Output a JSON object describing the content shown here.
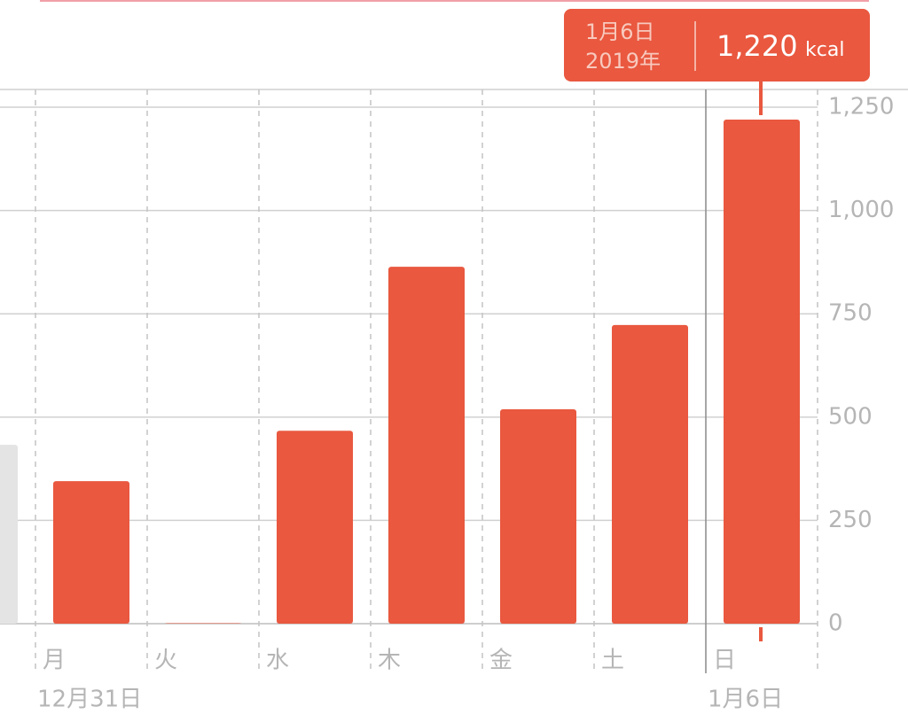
{
  "chart_data": {
    "type": "bar",
    "categories": [
      null,
      "月",
      "火",
      "水",
      "木",
      "金",
      "土",
      "日"
    ],
    "x_sublabels": [
      null,
      "12月31日",
      null,
      null,
      null,
      null,
      null,
      "1月6日"
    ],
    "values": [
      433,
      345,
      1,
      467,
      864,
      519,
      723,
      1220
    ],
    "colors": [
      "#e4e4e4",
      "#e9583f",
      "#e9583f",
      "#e9583f",
      "#e9583f",
      "#e9583f",
      "#e9583f",
      "#e9583f"
    ],
    "ylim": [
      0,
      1293
    ],
    "yticks": [
      0,
      250,
      500,
      750,
      {
        "value": 1000,
        "label": "1,000"
      },
      {
        "value": 1250,
        "label": "1,250"
      }
    ],
    "grid": true,
    "tooltip": {
      "date": "1月6日",
      "year": "2019年",
      "label": "1,220",
      "unit": "kcal"
    }
  }
}
